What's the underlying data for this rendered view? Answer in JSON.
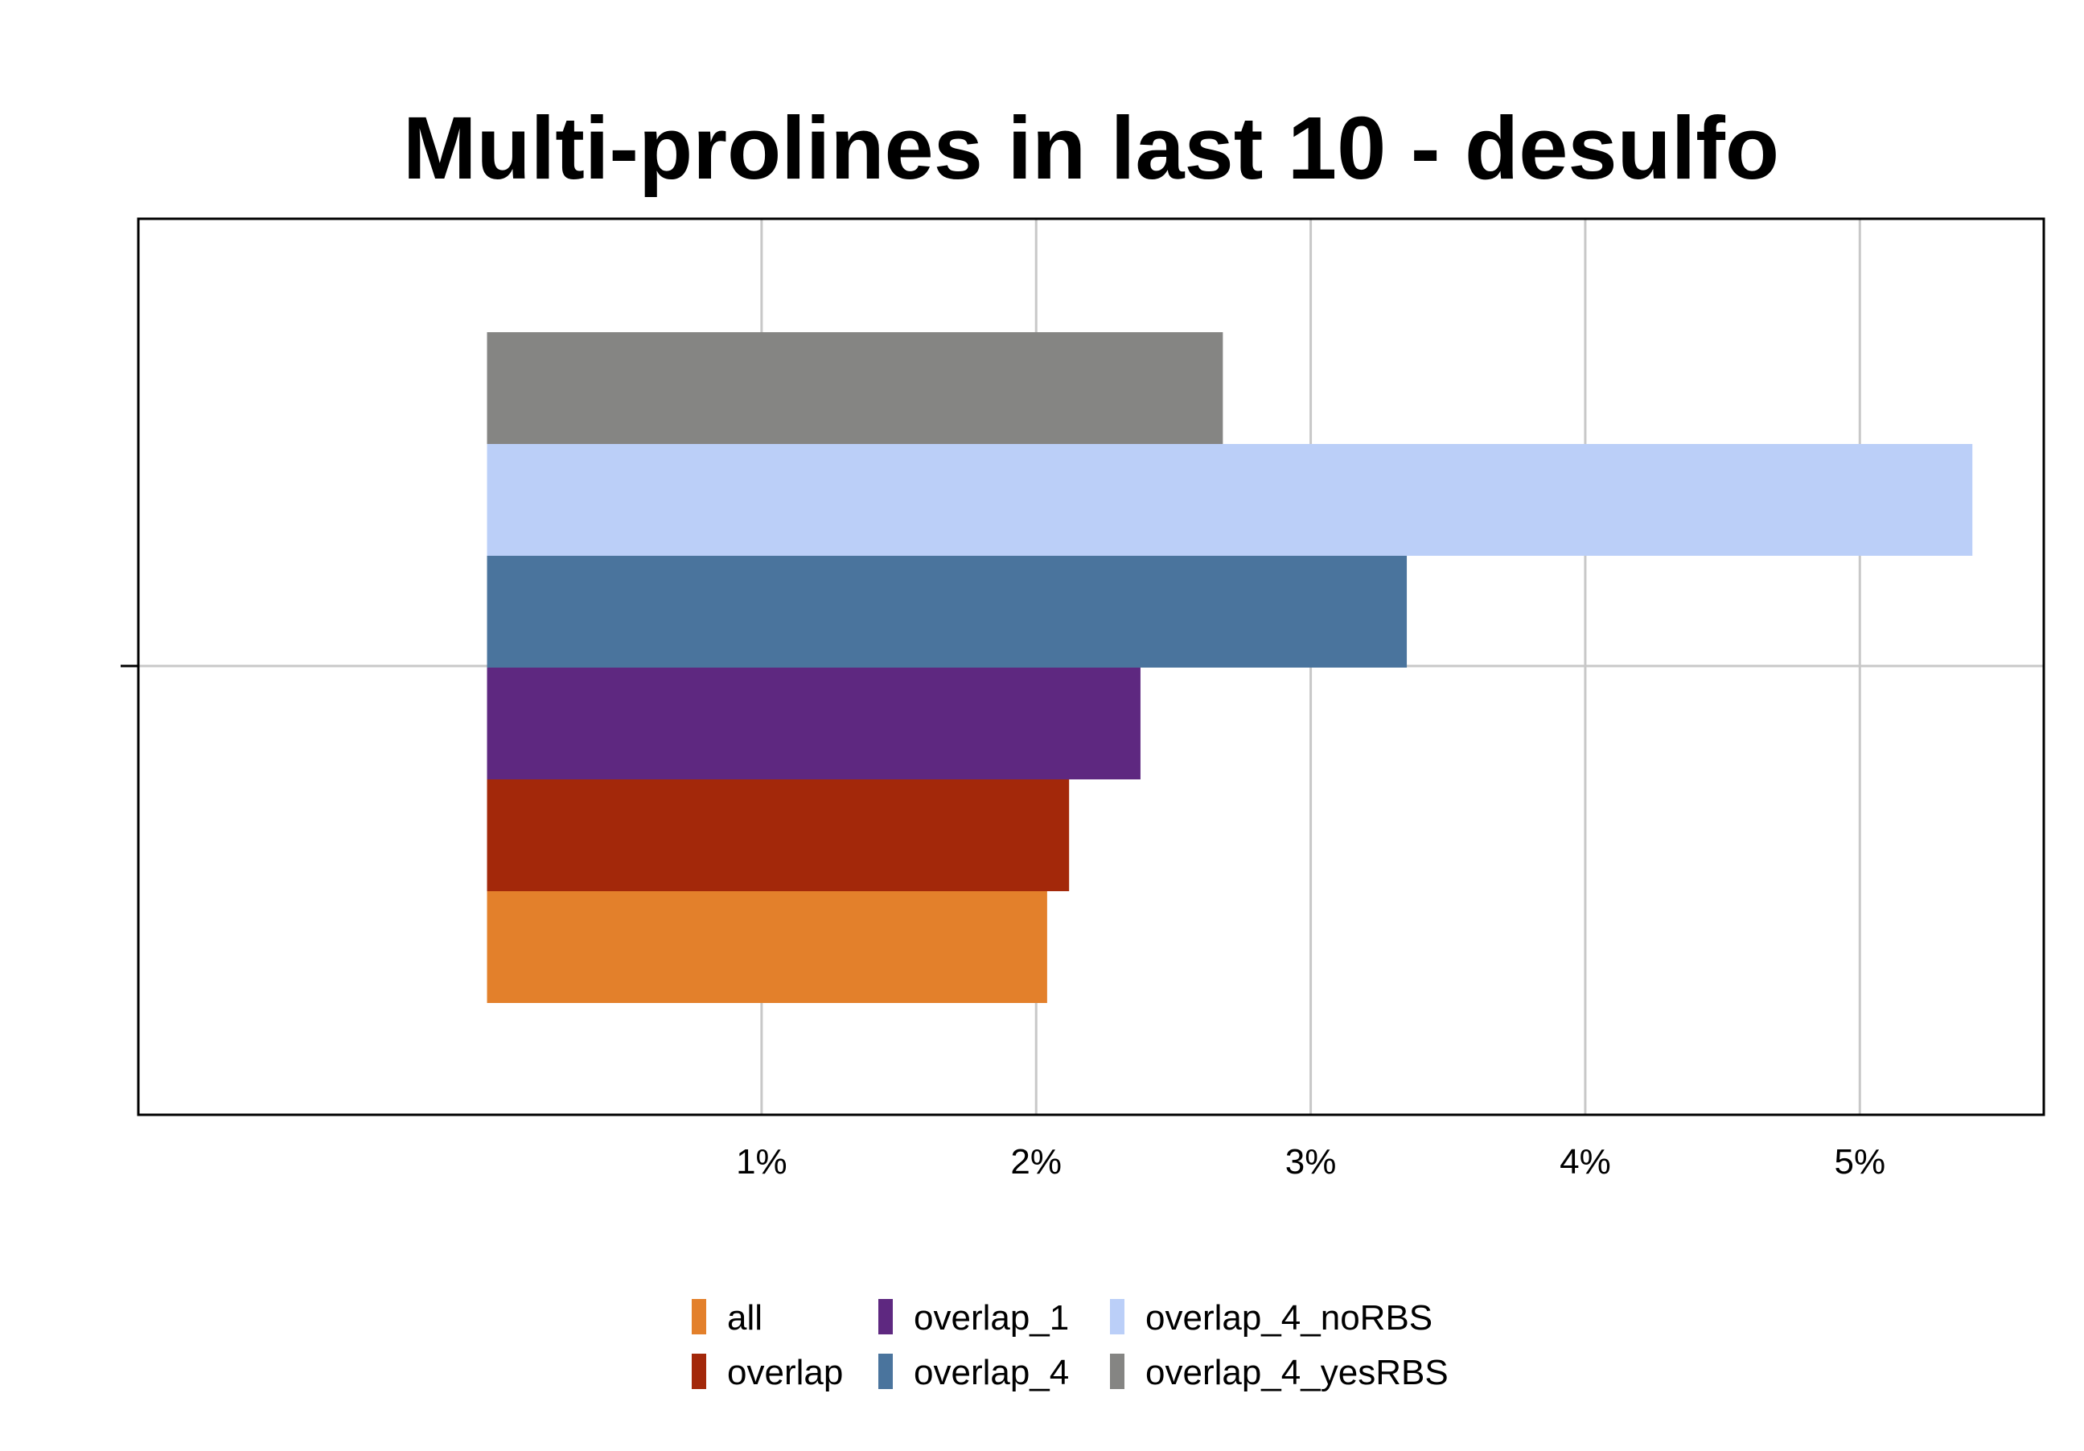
{
  "chart_data": {
    "type": "bar",
    "orientation": "horizontal",
    "title": "Multi-prolines in last 10 - desulfo",
    "xlabel": "",
    "ylabel": "",
    "x_unit": "%",
    "xlim": [
      -1.27,
      5.67
    ],
    "x_ticks": [
      1,
      2,
      3,
      4,
      5
    ],
    "x_tick_labels": [
      "1%",
      "2%",
      "3%",
      "4%",
      "5%"
    ],
    "grid": true,
    "legend_position": "bottom",
    "series": [
      {
        "name": "all",
        "value": 2.04,
        "color": "#e3802b"
      },
      {
        "name": "overlap",
        "value": 2.12,
        "color": "#a3280a"
      },
      {
        "name": "overlap_1",
        "value": 2.38,
        "color": "#5e2880"
      },
      {
        "name": "overlap_4",
        "value": 3.35,
        "color": "#4a749d"
      },
      {
        "name": "overlap_4_noRBS",
        "value": 5.41,
        "color": "#bbcff8"
      },
      {
        "name": "overlap_4_yesRBS",
        "value": 2.68,
        "color": "#858583"
      }
    ]
  }
}
